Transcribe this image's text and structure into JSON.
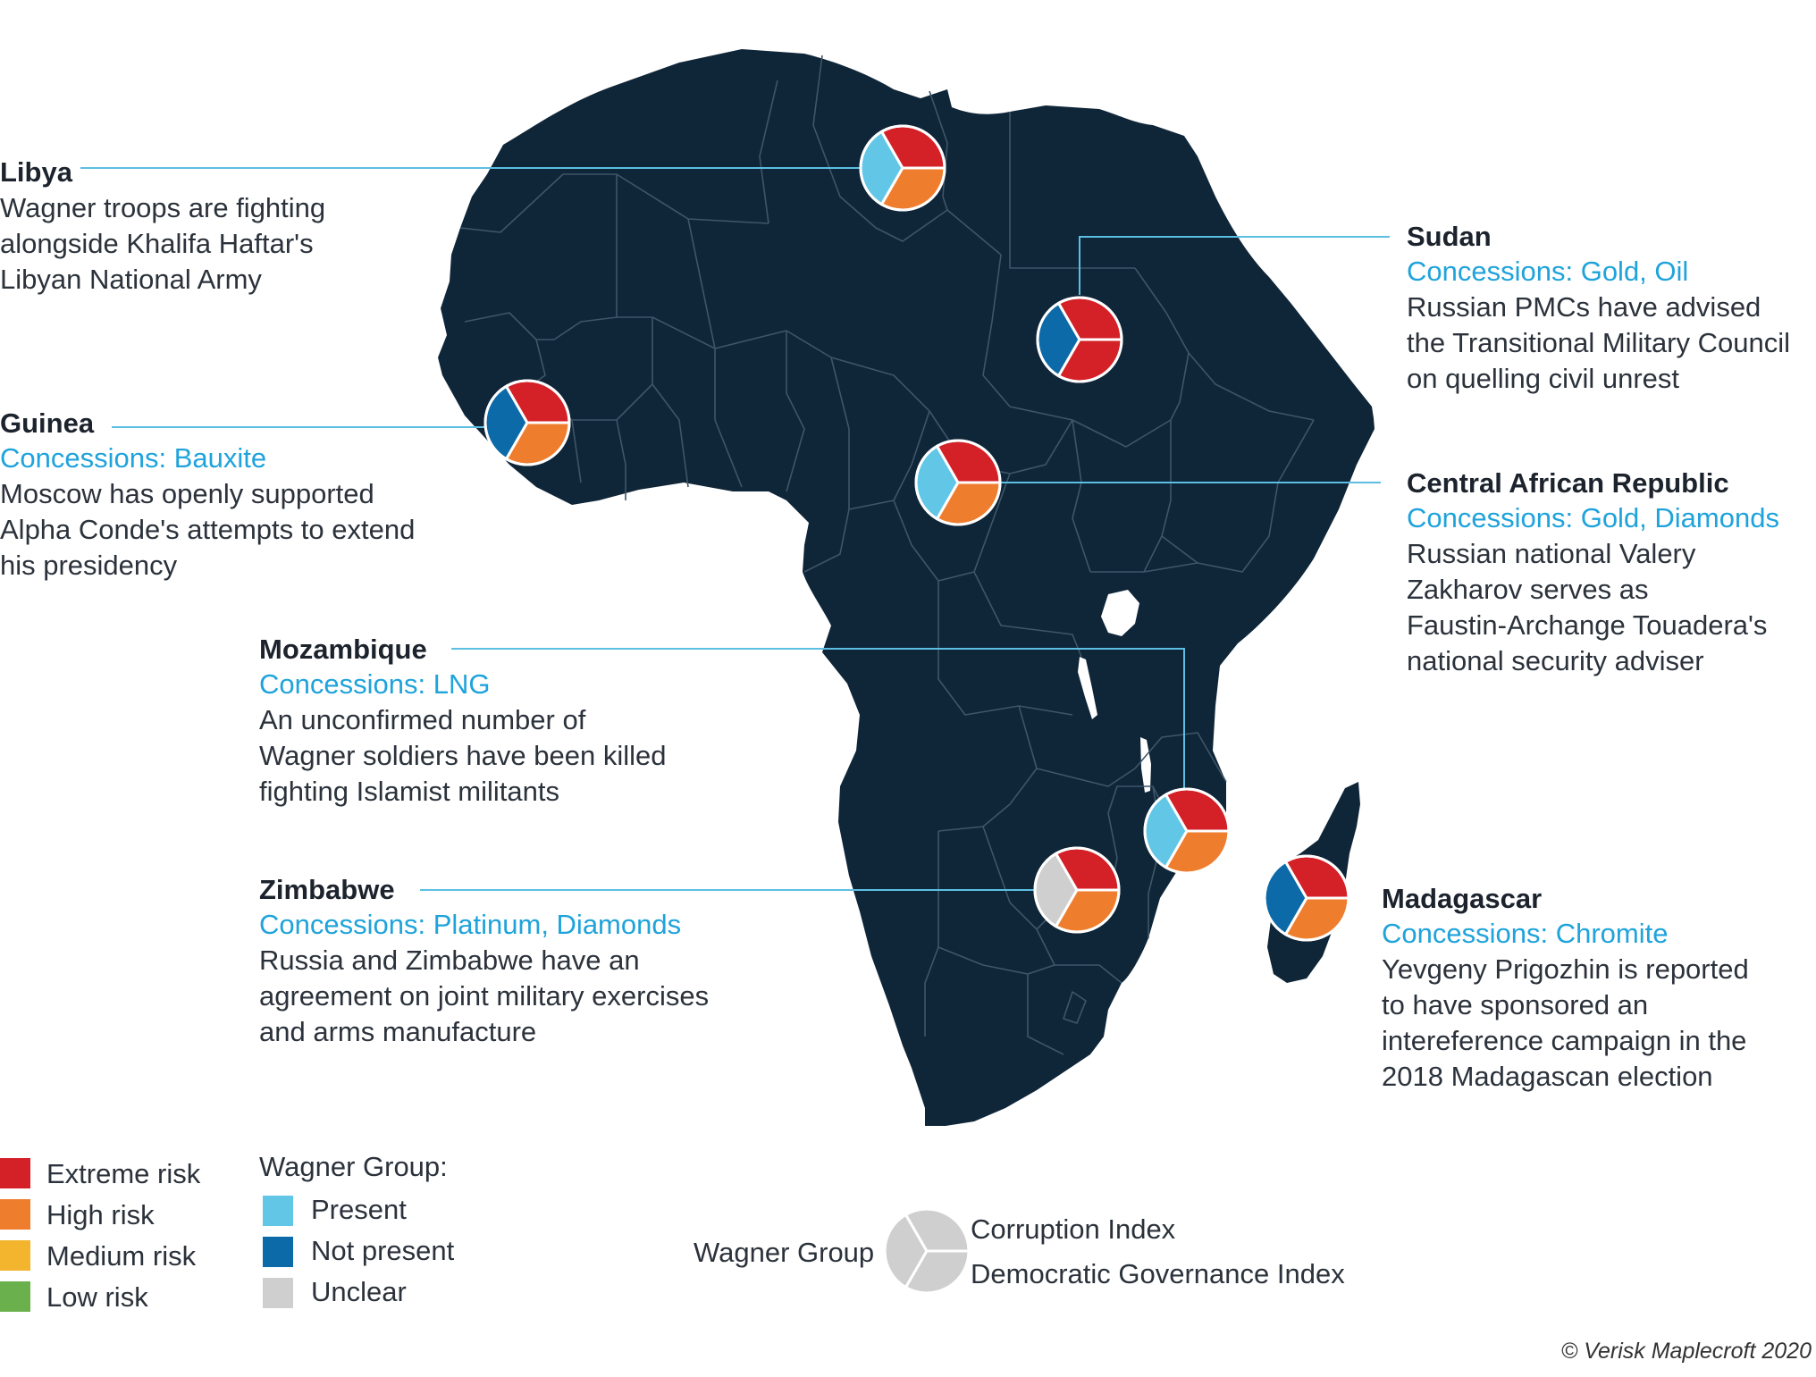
{
  "colors": {
    "extreme": "#d42027",
    "high": "#ef7d2e",
    "medium": "#f2b52d",
    "low": "#6ab04c",
    "present": "#62c6e6",
    "not_present": "#0d6aa8",
    "unclear": "#cfcfcf",
    "land": "#0f2538",
    "border": "#3f5568",
    "leader": "#5bbfe3",
    "concession_text": "#1fa3db"
  },
  "callouts": [
    {
      "id": "libya",
      "name": "Libya",
      "concessions": "",
      "lines": [
        "Wagner troops are fighting",
        "alongside Khalifa Haftar's",
        "Libyan National Army"
      ],
      "wagner": "present",
      "corruption": "extreme",
      "governance": "high"
    },
    {
      "id": "sudan",
      "name": "Sudan",
      "concessions": "Concessions: Gold, Oil",
      "lines": [
        "Russian PMCs have advised",
        "the Transitional Military Council",
        "on quelling civil unrest"
      ],
      "wagner": "not_present",
      "corruption": "extreme",
      "governance": "extreme"
    },
    {
      "id": "guinea",
      "name": "Guinea",
      "concessions": "Concessions: Bauxite",
      "lines": [
        "Moscow has openly supported",
        "Alpha Conde's attempts to extend",
        "his presidency"
      ],
      "wagner": "not_present",
      "corruption": "extreme",
      "governance": "high"
    },
    {
      "id": "car",
      "name": "Central African Republic",
      "concessions": "Concessions: Gold, Diamonds",
      "lines": [
        "Russian national Valery",
        "Zakharov serves as",
        "Faustin-Archange Touadera's",
        "national security adviser"
      ],
      "wagner": "present",
      "corruption": "extreme",
      "governance": "high"
    },
    {
      "id": "mozambique",
      "name": "Mozambique",
      "concessions": "Concessions: LNG",
      "lines": [
        "An unconfirmed number of",
        "Wagner soldiers have been killed",
        "fighting Islamist militants"
      ],
      "wagner": "present",
      "corruption": "extreme",
      "governance": "high"
    },
    {
      "id": "zimbabwe",
      "name": "Zimbabwe",
      "concessions": "Concessions: Platinum, Diamonds",
      "lines": [
        "Russia and Zimbabwe have an",
        "agreement on joint military exercises",
        "and arms manufacture"
      ],
      "wagner": "unclear",
      "corruption": "extreme",
      "governance": "high"
    },
    {
      "id": "madagascar",
      "name": "Madagascar",
      "concessions": "Concessions: Chromite",
      "lines": [
        "Yevgeny Prigozhin is reported",
        "to have sponsored an",
        "intereference campaign in the",
        "2018 Madagascan election"
      ],
      "wagner": "not_present",
      "corruption": "extreme",
      "governance": "high"
    }
  ],
  "legend": {
    "risk": [
      {
        "label": "Extreme risk",
        "color": "extreme"
      },
      {
        "label": "High risk",
        "color": "high"
      },
      {
        "label": "Medium risk",
        "color": "medium"
      },
      {
        "label": "Low risk",
        "color": "low"
      }
    ],
    "wagner_title": "Wagner Group:",
    "wagner": [
      {
        "label": "Present",
        "color": "present"
      },
      {
        "label": "Not present",
        "color": "not_present"
      },
      {
        "label": "Unclear",
        "color": "unclear"
      }
    ],
    "key": {
      "left": "Wagner Group",
      "top_right": "Corruption Index",
      "bottom_right": "Democratic Governance Index"
    }
  },
  "credit": "© Verisk Maplecroft 2020"
}
